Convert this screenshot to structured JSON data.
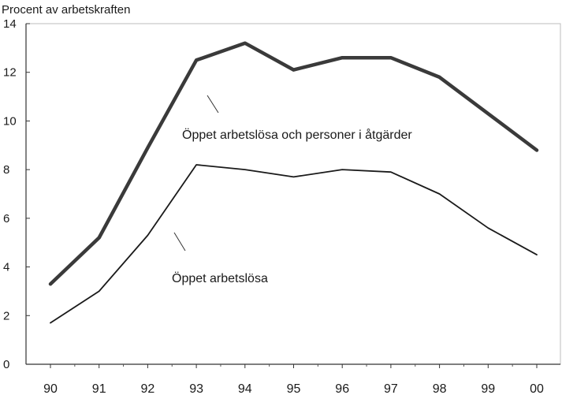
{
  "chart_data": {
    "type": "line",
    "ylabel": "Procent av arbetskraften",
    "xlabel": "",
    "categories": [
      "90",
      "91",
      "92",
      "93",
      "94",
      "95",
      "96",
      "97",
      "98",
      "99",
      "00"
    ],
    "ylim": [
      0,
      14
    ],
    "yticks": [
      0,
      2,
      4,
      6,
      8,
      10,
      12,
      14
    ],
    "ytick_labels": [
      "0",
      "2",
      "4",
      "6",
      "8",
      "10",
      "12",
      "14"
    ],
    "grid": false,
    "legend": "none (inline labels)",
    "series": [
      {
        "name": "Öppet arbetslösa och personer i åtgärder",
        "values": [
          3.3,
          5.2,
          8.9,
          12.5,
          13.2,
          12.1,
          12.6,
          12.6,
          11.8,
          10.3,
          8.8
        ],
        "color": "#3a3a3a",
        "style": "thick"
      },
      {
        "name": "Öppet arbetslösa",
        "values": [
          1.7,
          3.0,
          5.3,
          8.2,
          8.0,
          7.7,
          8.0,
          7.9,
          7.0,
          5.6,
          4.5
        ],
        "color": "#1a1a1a",
        "style": "thin"
      }
    ]
  }
}
